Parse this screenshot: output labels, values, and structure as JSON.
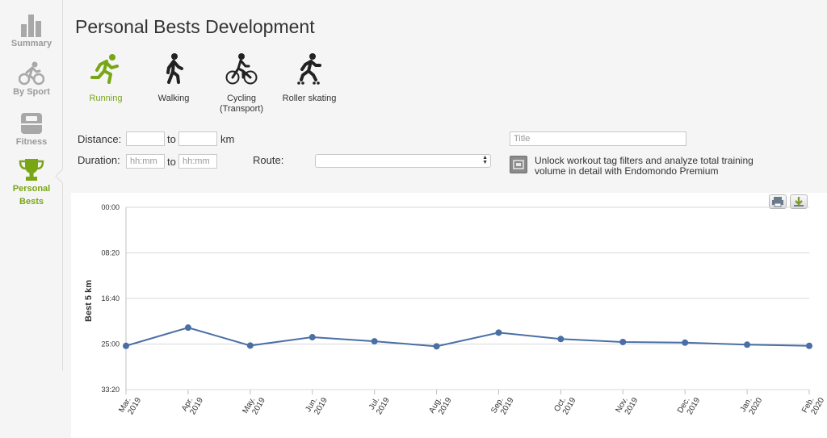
{
  "sidebar": {
    "items": [
      {
        "label": "Summary",
        "icon": "bar-chart-icon"
      },
      {
        "label": "By Sport",
        "icon": "cyclist-icon"
      },
      {
        "label": "Fitness",
        "icon": "scale-icon"
      },
      {
        "label": "Personal\nBests",
        "icon": "trophy-icon",
        "active": true
      }
    ]
  },
  "page": {
    "title": "Personal Bests Development"
  },
  "sports": [
    {
      "label": "Running",
      "icon": "running-icon",
      "active": true
    },
    {
      "label": "Walking",
      "icon": "walking-icon"
    },
    {
      "label": "Cycling\n(Transport)",
      "icon": "cycling-icon"
    },
    {
      "label": "Roller skating",
      "icon": "roller-skating-icon"
    }
  ],
  "filters": {
    "distance_label": "Distance:",
    "to": "to",
    "km": "km",
    "duration_label": "Duration:",
    "duration_placeholder": "hh:mm",
    "route_label": "Route:",
    "route_value": "",
    "title_placeholder": "Title",
    "premium_text": "Unlock workout tag filters and analyze total training volume in detail with Endomondo Premium"
  },
  "colors": {
    "accent": "#78a614",
    "series": "#4a6fa5",
    "muted": "#9a9a9a"
  },
  "chart_data": {
    "type": "line",
    "ylabel": "Best 5 km",
    "y_ticks": [
      "00:00",
      "08:20",
      "16:40",
      "25:00",
      "33:20"
    ],
    "y_reversed": true,
    "ylim_seconds": [
      0,
      2000
    ],
    "categories": [
      "Mar. 2019",
      "Apr. 2019",
      "May. 2019",
      "Jun. 2019",
      "Jul. 2019",
      "Aug. 2019",
      "Sep. 2019",
      "Oct. 2019",
      "Nov. 2019",
      "Dec. 2019",
      "Jan. 2020",
      "Feb. 2020"
    ],
    "series": [
      {
        "values_seconds": [
          1520,
          1320,
          1517,
          1425,
          1470,
          1525,
          1375,
          1445,
          1478,
          1485,
          1507,
          1520
        ]
      }
    ],
    "grid": true
  }
}
